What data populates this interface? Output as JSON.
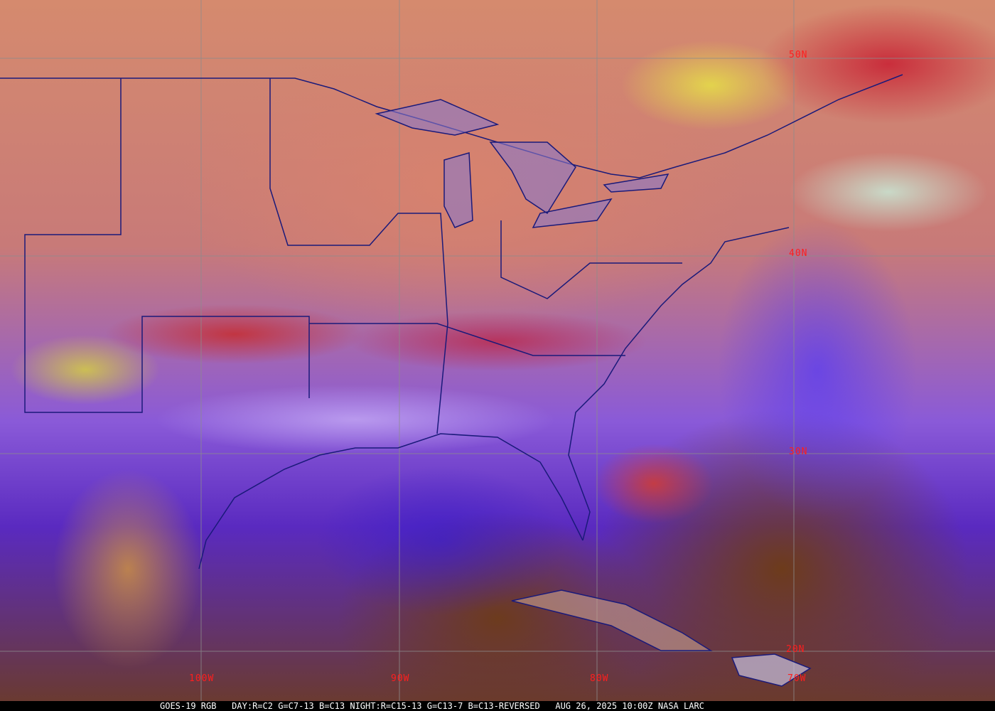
{
  "caption": {
    "satellite": "GOES-19 RGB",
    "day_recipe": "DAY:R=C2 G=C7-13 B=C13",
    "night_recipe": "NIGHT:R=C15-13 G=C13-7 B=C13-REVERSED",
    "datetime": "AUG 26, 2025 10:00Z",
    "credit": "NASA LARC"
  },
  "grid": {
    "latitudes": [
      "50N",
      "40N",
      "30N",
      "20N"
    ],
    "longitudes": [
      "100W",
      "90W",
      "80W",
      "70W"
    ],
    "label_color": "#ff1e1e",
    "line_color": "#8c8c8c"
  },
  "boundary_color": "#1a1a7a"
}
